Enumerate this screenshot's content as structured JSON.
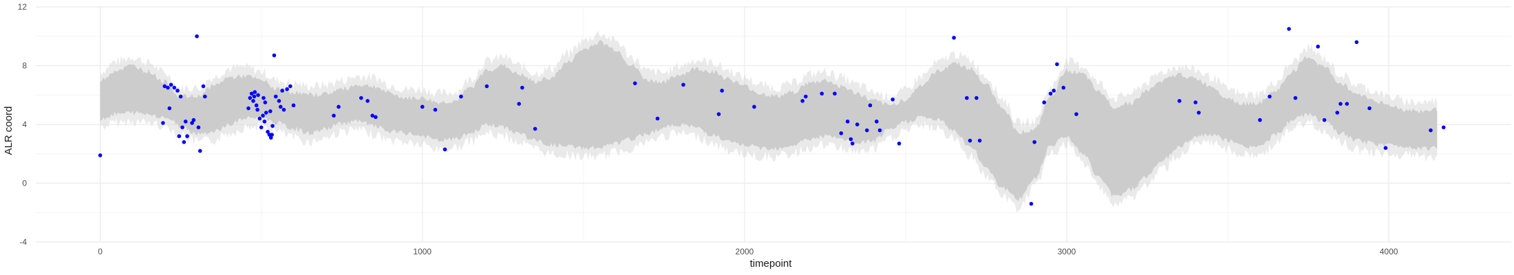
{
  "chart_data": {
    "type": "scatter",
    "title": "",
    "xlabel": "timepoint",
    "ylabel": "ALR coord",
    "xlim": [
      -200,
      4380
    ],
    "ylim": [
      -4,
      12
    ],
    "x_ticks": [
      0,
      1000,
      2000,
      3000,
      4000
    ],
    "x_tick_labels": [
      "0",
      "1000",
      "2000",
      "3000",
      "4000"
    ],
    "y_ticks": [
      -4,
      0,
      4,
      8,
      12
    ],
    "y_tick_labels": [
      "-4",
      "0",
      "4",
      "8",
      "12"
    ],
    "grid": true,
    "legend": "none",
    "colors": {
      "band": "#cccccc",
      "band_noise": "#d9d9d9",
      "points": "#0000ff",
      "grid_major": "#ebebeb",
      "grid_minor": "#f4f4f4"
    },
    "ribbon": {
      "x": [
        0,
        50,
        100,
        150,
        200,
        250,
        300,
        350,
        400,
        450,
        500,
        550,
        600,
        650,
        700,
        750,
        800,
        850,
        900,
        950,
        1000,
        1050,
        1100,
        1150,
        1200,
        1250,
        1300,
        1350,
        1400,
        1450,
        1500,
        1550,
        1600,
        1650,
        1700,
        1750,
        1800,
        1850,
        1900,
        1950,
        2000,
        2050,
        2100,
        2150,
        2200,
        2250,
        2300,
        2350,
        2400,
        2450,
        2500,
        2550,
        2600,
        2650,
        2700,
        2750,
        2800,
        2850,
        2900,
        2950,
        3000,
        3050,
        3100,
        3150,
        3200,
        3250,
        3300,
        3350,
        3400,
        3450,
        3500,
        3550,
        3600,
        3650,
        3700,
        3750,
        3800,
        3850,
        3900,
        3950,
        4000,
        4050,
        4100,
        4150
      ],
      "lower": [
        4.4,
        4.7,
        4.8,
        4.7,
        4.5,
        3.9,
        3.4,
        3.5,
        4.0,
        4.4,
        4.5,
        4.1,
        3.7,
        3.4,
        3.7,
        4.1,
        4.2,
        3.9,
        3.5,
        3.4,
        3.2,
        2.9,
        3.0,
        3.4,
        4.0,
        3.8,
        3.4,
        2.9,
        2.6,
        2.5,
        2.4,
        2.4,
        2.7,
        3.0,
        3.4,
        3.8,
        4.0,
        3.8,
        3.3,
        2.8,
        2.6,
        2.4,
        2.4,
        2.6,
        3.0,
        3.2,
        3.0,
        2.7,
        2.9,
        3.6,
        4.2,
        4.5,
        4.3,
        3.6,
        2.5,
        1.1,
        -0.3,
        -1.1,
        0.3,
        2.6,
        3.2,
        2.0,
        0.4,
        -0.9,
        -0.4,
        0.5,
        1.6,
        2.5,
        3.2,
        3.3,
        2.9,
        2.5,
        2.5,
        3.3,
        4.3,
        4.7,
        4.2,
        3.4,
        2.9,
        2.7,
        2.6,
        2.5,
        2.4,
        2.4
      ],
      "upper": [
        7.0,
        7.7,
        8.0,
        7.6,
        6.9,
        5.9,
        5.9,
        6.6,
        7.2,
        7.3,
        7.0,
        6.4,
        6.2,
        6.0,
        6.1,
        6.4,
        6.7,
        6.6,
        6.1,
        5.8,
        5.8,
        5.5,
        5.6,
        6.5,
        7.7,
        8.0,
        7.4,
        6.9,
        7.2,
        8.2,
        9.1,
        9.6,
        9.1,
        8.0,
        7.0,
        6.9,
        7.4,
        7.8,
        7.6,
        7.1,
        6.6,
        6.1,
        5.9,
        6.2,
        6.8,
        7.0,
        6.6,
        6.1,
        5.6,
        5.3,
        5.7,
        6.7,
        7.6,
        8.2,
        7.8,
        6.7,
        5.2,
        3.5,
        3.6,
        5.9,
        7.7,
        7.4,
        6.2,
        5.2,
        5.5,
        6.3,
        7.0,
        7.4,
        7.1,
        6.6,
        5.8,
        5.4,
        5.5,
        6.3,
        7.6,
        8.6,
        7.9,
        6.8,
        6.1,
        5.7,
        5.3,
        5.0,
        4.9,
        5.0
      ]
    },
    "points": [
      {
        "x": 0,
        "y": 1.9
      },
      {
        "x": 195,
        "y": 4.1
      },
      {
        "x": 200,
        "y": 6.6
      },
      {
        "x": 210,
        "y": 6.5
      },
      {
        "x": 215,
        "y": 5.1
      },
      {
        "x": 220,
        "y": 6.7
      },
      {
        "x": 230,
        "y": 6.5
      },
      {
        "x": 240,
        "y": 6.3
      },
      {
        "x": 245,
        "y": 3.2
      },
      {
        "x": 250,
        "y": 5.9
      },
      {
        "x": 255,
        "y": 3.8
      },
      {
        "x": 260,
        "y": 2.8
      },
      {
        "x": 265,
        "y": 4.2
      },
      {
        "x": 270,
        "y": 3.2
      },
      {
        "x": 285,
        "y": 4.1
      },
      {
        "x": 290,
        "y": 4.3
      },
      {
        "x": 300,
        "y": 10.0
      },
      {
        "x": 305,
        "y": 3.8
      },
      {
        "x": 310,
        "y": 2.2
      },
      {
        "x": 320,
        "y": 6.6
      },
      {
        "x": 325,
        "y": 5.9
      },
      {
        "x": 460,
        "y": 5.1
      },
      {
        "x": 465,
        "y": 5.8
      },
      {
        "x": 470,
        "y": 6.1
      },
      {
        "x": 475,
        "y": 5.6
      },
      {
        "x": 478,
        "y": 5.9
      },
      {
        "x": 480,
        "y": 6.2
      },
      {
        "x": 485,
        "y": 5.3
      },
      {
        "x": 488,
        "y": 5.0
      },
      {
        "x": 490,
        "y": 6.0
      },
      {
        "x": 495,
        "y": 4.4
      },
      {
        "x": 500,
        "y": 3.8
      },
      {
        "x": 505,
        "y": 4.6
      },
      {
        "x": 507,
        "y": 5.8
      },
      {
        "x": 510,
        "y": 4.2
      },
      {
        "x": 512,
        "y": 5.5
      },
      {
        "x": 515,
        "y": 4.8
      },
      {
        "x": 520,
        "y": 3.5
      },
      {
        "x": 525,
        "y": 3.3
      },
      {
        "x": 528,
        "y": 4.9
      },
      {
        "x": 530,
        "y": 3.1
      },
      {
        "x": 533,
        "y": 3.3
      },
      {
        "x": 535,
        "y": 3.9
      },
      {
        "x": 540,
        "y": 8.7
      },
      {
        "x": 545,
        "y": 5.9
      },
      {
        "x": 555,
        "y": 5.6
      },
      {
        "x": 560,
        "y": 5.2
      },
      {
        "x": 565,
        "y": 6.3
      },
      {
        "x": 570,
        "y": 5.0
      },
      {
        "x": 580,
        "y": 6.4
      },
      {
        "x": 590,
        "y": 6.6
      },
      {
        "x": 600,
        "y": 5.3
      },
      {
        "x": 725,
        "y": 4.6
      },
      {
        "x": 740,
        "y": 5.2
      },
      {
        "x": 810,
        "y": 5.8
      },
      {
        "x": 830,
        "y": 5.6
      },
      {
        "x": 845,
        "y": 4.6
      },
      {
        "x": 855,
        "y": 4.5
      },
      {
        "x": 1000,
        "y": 5.2
      },
      {
        "x": 1040,
        "y": 5.0
      },
      {
        "x": 1070,
        "y": 2.3
      },
      {
        "x": 1120,
        "y": 5.9
      },
      {
        "x": 1200,
        "y": 6.6
      },
      {
        "x": 1300,
        "y": 5.4
      },
      {
        "x": 1310,
        "y": 6.5
      },
      {
        "x": 1350,
        "y": 3.7
      },
      {
        "x": 1660,
        "y": 6.8
      },
      {
        "x": 1730,
        "y": 4.4
      },
      {
        "x": 1810,
        "y": 6.7
      },
      {
        "x": 1920,
        "y": 4.7
      },
      {
        "x": 1930,
        "y": 6.3
      },
      {
        "x": 2030,
        "y": 5.2
      },
      {
        "x": 2180,
        "y": 5.6
      },
      {
        "x": 2190,
        "y": 5.9
      },
      {
        "x": 2240,
        "y": 6.1
      },
      {
        "x": 2280,
        "y": 6.1
      },
      {
        "x": 2300,
        "y": 3.4
      },
      {
        "x": 2320,
        "y": 4.2
      },
      {
        "x": 2330,
        "y": 3.0
      },
      {
        "x": 2335,
        "y": 2.7
      },
      {
        "x": 2350,
        "y": 4.0
      },
      {
        "x": 2380,
        "y": 3.6
      },
      {
        "x": 2390,
        "y": 5.3
      },
      {
        "x": 2410,
        "y": 4.2
      },
      {
        "x": 2420,
        "y": 3.6
      },
      {
        "x": 2460,
        "y": 5.7
      },
      {
        "x": 2480,
        "y": 2.7
      },
      {
        "x": 2650,
        "y": 9.9
      },
      {
        "x": 2690,
        "y": 5.8
      },
      {
        "x": 2700,
        "y": 2.9
      },
      {
        "x": 2720,
        "y": 5.8
      },
      {
        "x": 2730,
        "y": 2.9
      },
      {
        "x": 2890,
        "y": -1.4
      },
      {
        "x": 2900,
        "y": 2.8
      },
      {
        "x": 2930,
        "y": 5.5
      },
      {
        "x": 2950,
        "y": 6.1
      },
      {
        "x": 2960,
        "y": 6.3
      },
      {
        "x": 2970,
        "y": 8.1
      },
      {
        "x": 2990,
        "y": 6.5
      },
      {
        "x": 3030,
        "y": 4.7
      },
      {
        "x": 3350,
        "y": 5.6
      },
      {
        "x": 3400,
        "y": 5.5
      },
      {
        "x": 3410,
        "y": 4.8
      },
      {
        "x": 3600,
        "y": 4.3
      },
      {
        "x": 3630,
        "y": 5.9
      },
      {
        "x": 3690,
        "y": 10.5
      },
      {
        "x": 3710,
        "y": 5.8
      },
      {
        "x": 3780,
        "y": 9.3
      },
      {
        "x": 3800,
        "y": 4.3
      },
      {
        "x": 3840,
        "y": 4.8
      },
      {
        "x": 3850,
        "y": 5.4
      },
      {
        "x": 3870,
        "y": 5.4
      },
      {
        "x": 3900,
        "y": 9.6
      },
      {
        "x": 3940,
        "y": 5.1
      },
      {
        "x": 3990,
        "y": 2.4
      },
      {
        "x": 4130,
        "y": 3.6
      },
      {
        "x": 4170,
        "y": 3.8
      }
    ]
  }
}
